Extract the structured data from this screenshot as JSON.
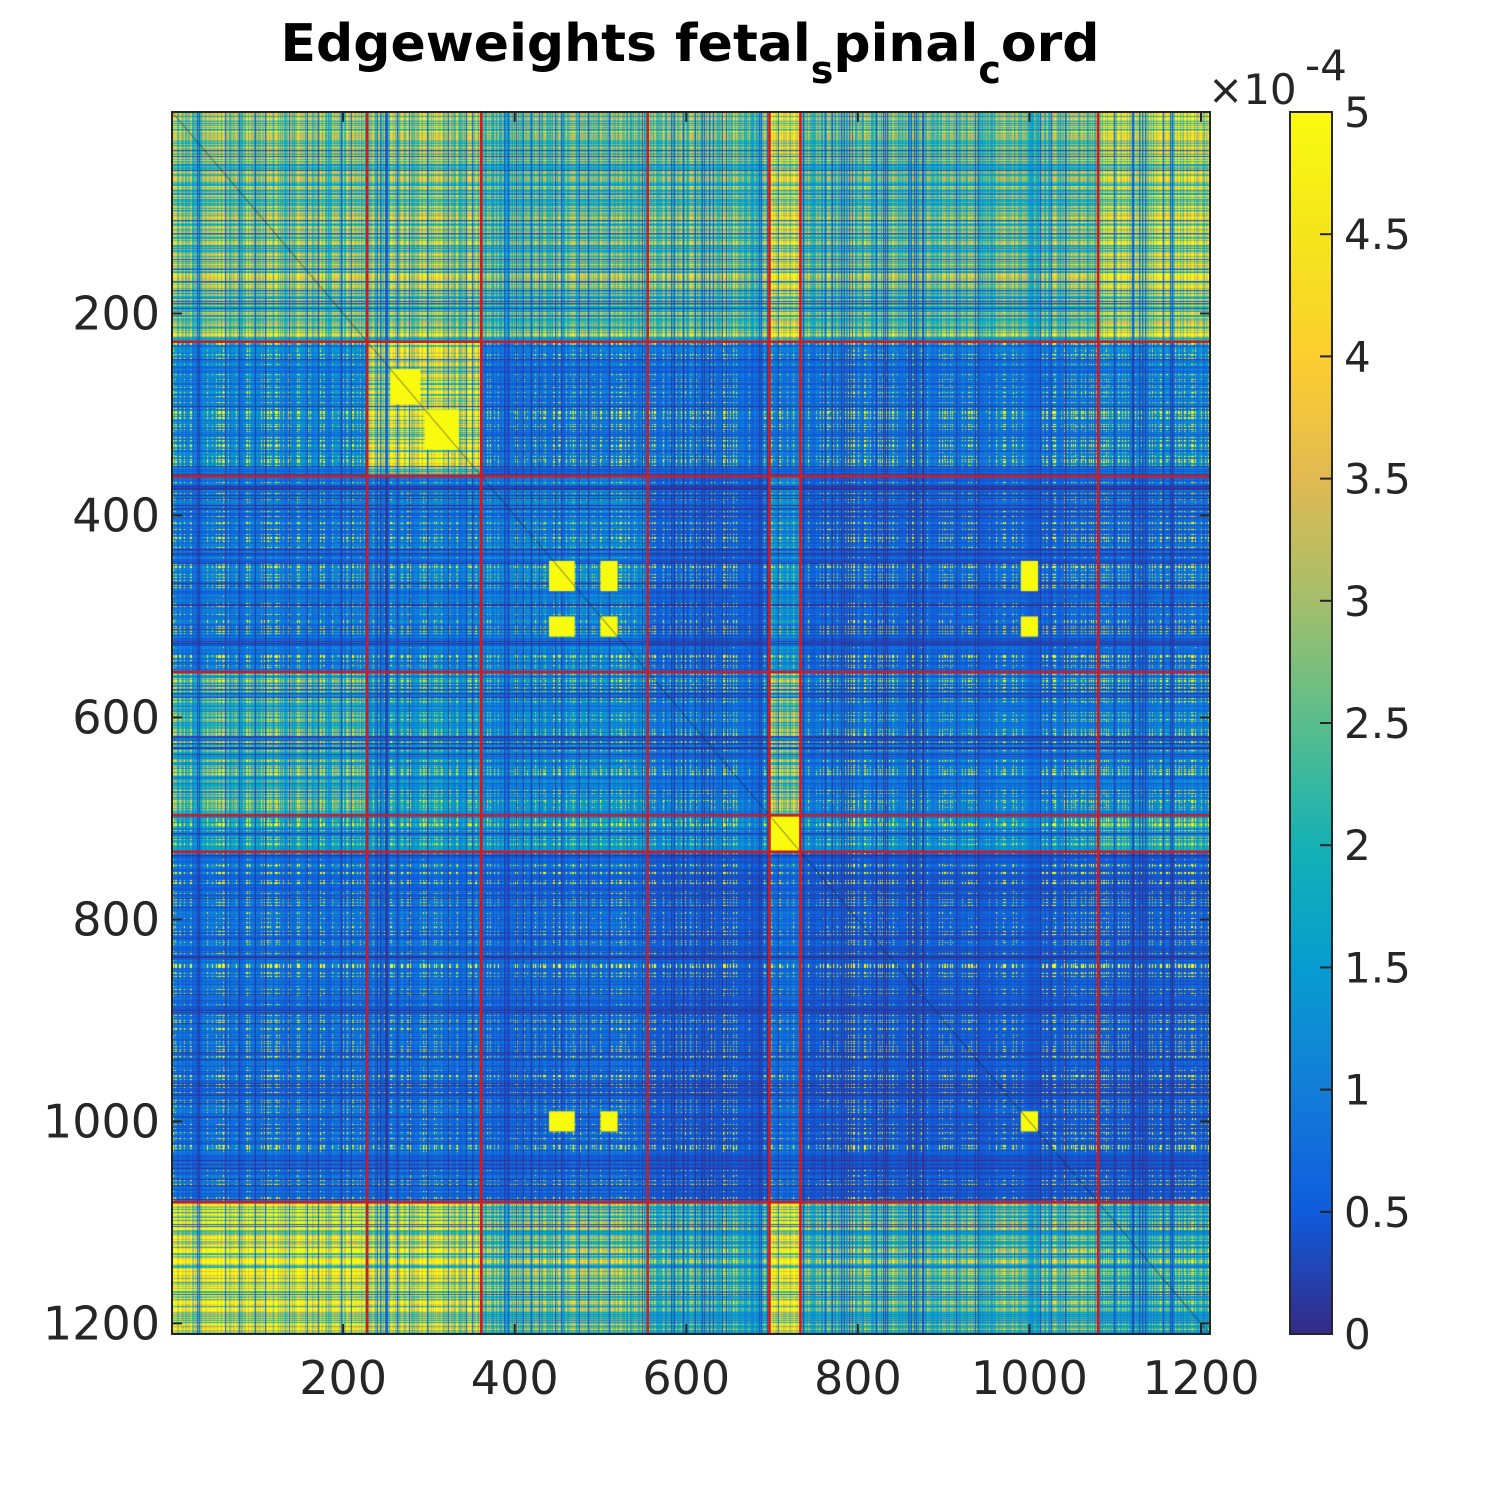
{
  "chart_data": {
    "type": "heatmap",
    "title_parts": [
      "Edgeweights fetal",
      "s",
      "pinal",
      "c",
      "ord"
    ],
    "title_raw": "Edgeweights fetal_spinal_cord",
    "xlabel": "",
    "ylabel": "",
    "matrix_size": 1210,
    "xlim": [
      0.5,
      1210.5
    ],
    "ylim": [
      0.5,
      1210.5
    ],
    "y_direction": "reversed",
    "x_ticks": [
      200,
      400,
      600,
      800,
      1000,
      1200
    ],
    "x_tick_labels": [
      "200",
      "400",
      "600",
      "800",
      "1000",
      "1200"
    ],
    "y_ticks": [
      200,
      400,
      600,
      800,
      1000,
      1200
    ],
    "y_tick_labels": [
      "200",
      "400",
      "600",
      "800",
      "1000",
      "1200"
    ],
    "colormap": "parula",
    "clim": [
      0,
      0.0005
    ],
    "colorbar": {
      "ticks": [
        0,
        0.5,
        1,
        1.5,
        2,
        2.5,
        3,
        3.5,
        4,
        4.5,
        5
      ],
      "tick_labels": [
        "0",
        "0.5",
        "1",
        "1.5",
        "2",
        "2.5",
        "3",
        "3.5",
        "4",
        "4.5",
        "5"
      ],
      "exponent_label": "×10",
      "exponent": "-4",
      "placement": "right"
    },
    "cluster_boundaries": [
      228,
      361,
      555,
      697,
      733,
      1080
    ],
    "boundary_color": "#d7191c",
    "block_summary": {
      "description": "Approximate mean intensity (in units of 1e-4) for blocks between cluster boundaries; rows listed top to bottom, columns left to right",
      "blocks": [
        [
          3.0,
          3.2,
          2.6,
          2.8,
          4.2,
          2.6,
          3.6
        ],
        [
          1.2,
          3.8,
          0.9,
          0.9,
          1.0,
          0.9,
          1.1
        ],
        [
          1.0,
          1.1,
          1.2,
          0.7,
          1.5,
          0.7,
          0.8
        ],
        [
          2.2,
          1.6,
          1.3,
          1.0,
          3.0,
          1.0,
          1.1
        ],
        [
          1.6,
          1.6,
          1.5,
          1.3,
          5.0,
          1.3,
          1.8
        ],
        [
          0.9,
          0.9,
          0.8,
          0.6,
          0.9,
          0.6,
          0.6
        ],
        [
          4.4,
          4.0,
          2.8,
          2.2,
          4.8,
          2.4,
          2.0
        ]
      ]
    },
    "hot_spots": [
      {
        "rows": [
          445,
          475
        ],
        "cols": [
          440,
          470
        ],
        "value": 5
      },
      {
        "rows": [
          445,
          475
        ],
        "cols": [
          500,
          520
        ],
        "value": 5
      },
      {
        "rows": [
          500,
          520
        ],
        "cols": [
          440,
          470
        ],
        "value": 5
      },
      {
        "rows": [
          500,
          520
        ],
        "cols": [
          500,
          520
        ],
        "value": 5
      },
      {
        "rows": [
          445,
          475
        ],
        "cols": [
          990,
          1010
        ],
        "value": 5
      },
      {
        "rows": [
          500,
          520
        ],
        "cols": [
          990,
          1010
        ],
        "value": 5
      },
      {
        "rows": [
          990,
          1010
        ],
        "cols": [
          440,
          470
        ],
        "value": 5
      },
      {
        "rows": [
          990,
          1010
        ],
        "cols": [
          500,
          520
        ],
        "value": 5
      },
      {
        "rows": [
          990,
          1010
        ],
        "cols": [
          990,
          1010
        ],
        "value": 5
      },
      {
        "rows": [
          255,
          290
        ],
        "cols": [
          255,
          290
        ],
        "value": 5
      },
      {
        "rows": [
          295,
          335
        ],
        "cols": [
          295,
          335
        ],
        "value": 5
      },
      {
        "rows": [
          697,
          733
        ],
        "cols": [
          697,
          733
        ],
        "value": 5
      }
    ]
  }
}
